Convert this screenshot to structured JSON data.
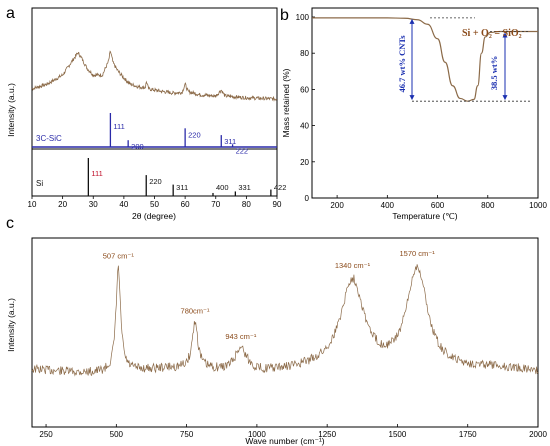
{
  "colors": {
    "trace": "#8b6a48",
    "sic_stick": "#2a2aa8",
    "si_stick": "#111111",
    "red_label": "#c0102a",
    "blue_anno": "#1a2fb0",
    "tga_anno": "#8a4a1a",
    "raman_label": "#8a4a1a"
  },
  "panels": {
    "a": "a",
    "b": "b",
    "c": "c"
  },
  "chart_data": [
    {
      "type": "line",
      "panel": "a",
      "xlabel": "2θ (degree)",
      "ylabel": "Intensity (a.u.)",
      "xlim": [
        10,
        90
      ],
      "x_ticks": [
        10,
        20,
        30,
        40,
        50,
        60,
        70,
        80,
        90
      ],
      "y_ticks_shown": false,
      "trace_points": [
        [
          10,
          0.32
        ],
        [
          15,
          0.4
        ],
        [
          20,
          0.55
        ],
        [
          22,
          0.7
        ],
        [
          24,
          0.85
        ],
        [
          25,
          0.92
        ],
        [
          26,
          0.85
        ],
        [
          28,
          0.66
        ],
        [
          30,
          0.55
        ],
        [
          33,
          0.55
        ],
        [
          35,
          0.78
        ],
        [
          35.6,
          0.95
        ],
        [
          36.5,
          0.75
        ],
        [
          38,
          0.62
        ],
        [
          40,
          0.5
        ],
        [
          42,
          0.4
        ],
        [
          45,
          0.35
        ],
        [
          47,
          0.34
        ],
        [
          47.4,
          0.45
        ],
        [
          48,
          0.32
        ],
        [
          52,
          0.28
        ],
        [
          56,
          0.25
        ],
        [
          59,
          0.26
        ],
        [
          60,
          0.4
        ],
        [
          61,
          0.27
        ],
        [
          65,
          0.22
        ],
        [
          70,
          0.2
        ],
        [
          71.8,
          0.3
        ],
        [
          73,
          0.2
        ],
        [
          80,
          0.17
        ],
        [
          90,
          0.15
        ]
      ],
      "reference_patterns": [
        {
          "name": "3C-SiC",
          "peaks": [
            {
              "x": 35.6,
              "intensity": 100,
              "label": "111"
            },
            {
              "x": 41.4,
              "intensity": 20,
              "label": "200"
            },
            {
              "x": 60.0,
              "intensity": 55,
              "label": "220"
            },
            {
              "x": 71.8,
              "intensity": 35,
              "label": "311"
            },
            {
              "x": 75.5,
              "intensity": 8,
              "label": "222"
            }
          ]
        },
        {
          "name": "Si",
          "peaks": [
            {
              "x": 28.4,
              "intensity": 100,
              "label": "111"
            },
            {
              "x": 47.3,
              "intensity": 55,
              "label": "220"
            },
            {
              "x": 56.1,
              "intensity": 30,
              "label": "311"
            },
            {
              "x": 69.1,
              "intensity": 8,
              "label": "400"
            },
            {
              "x": 76.4,
              "intensity": 12,
              "label": "331"
            },
            {
              "x": 88.0,
              "intensity": 17,
              "label": "422"
            }
          ]
        }
      ]
    },
    {
      "type": "line",
      "panel": "b",
      "xlabel": "Temperature (℃)",
      "ylabel": "Mass retained (%)",
      "xlim": [
        100,
        1000
      ],
      "ylim": [
        0,
        100
      ],
      "x_ticks": [
        200,
        400,
        600,
        800,
        1000
      ],
      "y_ticks": [
        0,
        20,
        40,
        60,
        80,
        100
      ],
      "series": [
        {
          "values": [
            [
              100,
              99.5
            ],
            [
              400,
              99.5
            ],
            [
              470,
              99.3
            ],
            [
              520,
              98.5
            ],
            [
              560,
              96
            ],
            [
              600,
              88
            ],
            [
              630,
              75
            ],
            [
              660,
              62
            ],
            [
              690,
              55
            ],
            [
              720,
              53.5
            ],
            [
              745,
              54.5
            ],
            [
              760,
              62
            ],
            [
              775,
              80
            ],
            [
              790,
              89
            ],
            [
              810,
              91.5
            ],
            [
              850,
              92
            ],
            [
              900,
              92
            ],
            [
              1000,
              92
            ]
          ]
        }
      ],
      "annotations": {
        "reaction": "Si + O₂ = SiO₂",
        "left_drop": "46.7 wt% CNTs",
        "right_rise": "38.5 wt%"
      }
    },
    {
      "type": "line",
      "panel": "c",
      "xlabel": "Wave number (cm⁻¹)",
      "ylabel": "Intensity (a.u.)",
      "xlim": [
        200,
        2000
      ],
      "x_ticks": [
        250,
        500,
        750,
        1000,
        1250,
        1500,
        1750,
        2000
      ],
      "y_ticks_shown": false,
      "peaks": [
        {
          "x": 507,
          "height": 1.0,
          "width": 10,
          "label": "507 cm⁻¹"
        },
        {
          "x": 780,
          "height": 0.45,
          "width": 12,
          "label": "780cm⁻¹"
        },
        {
          "x": 943,
          "height": 0.23,
          "width": 25,
          "label": "943 cm⁻¹"
        },
        {
          "x": 1340,
          "height": 0.85,
          "width": 50,
          "label": "1340 cm⁻¹"
        },
        {
          "x": 1570,
          "height": 1.0,
          "width": 45,
          "label": "1570 cm⁻¹"
        }
      ]
    }
  ]
}
